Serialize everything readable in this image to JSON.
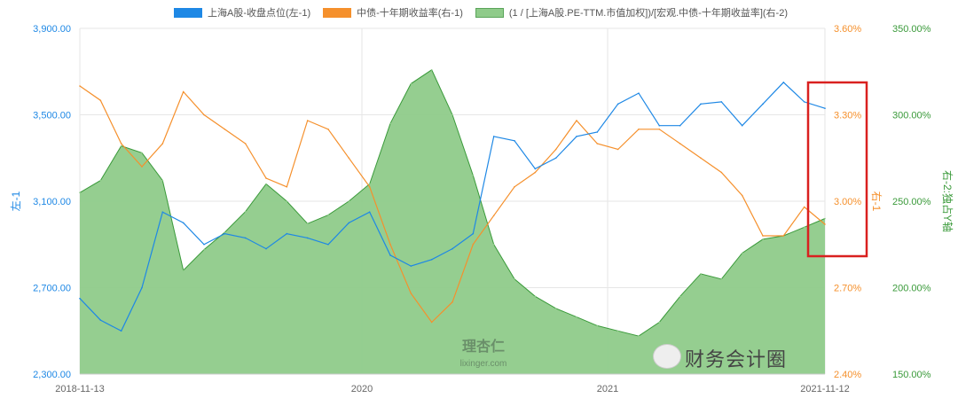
{
  "chart_data": {
    "type": "line",
    "legend_position": "top",
    "grid": true,
    "x_start": "2018-11-13",
    "x_end": "2021-11-12",
    "x_tick_labels": [
      "2018-11-13",
      "2020",
      "2021",
      "2021-11-12"
    ],
    "x": [
      "2018-11",
      "2018-12",
      "2019-01",
      "2019-02",
      "2019-03",
      "2019-04",
      "2019-05",
      "2019-06",
      "2019-07",
      "2019-08",
      "2019-09",
      "2019-10",
      "2019-11",
      "2019-12",
      "2020-01",
      "2020-02",
      "2020-03",
      "2020-04",
      "2020-05",
      "2020-06",
      "2020-07",
      "2020-08",
      "2020-09",
      "2020-10",
      "2020-11",
      "2020-12",
      "2021-01",
      "2021-02",
      "2021-03",
      "2021-04",
      "2021-05",
      "2021-06",
      "2021-07",
      "2021-08",
      "2021-09",
      "2021-10",
      "2021-11"
    ],
    "axes": {
      "left": {
        "label": "左-1",
        "range": [
          2300,
          3900
        ],
        "ticks": [
          "2,300.00",
          "2,700.00",
          "3,100.00",
          "3,500.00",
          "3,900.00"
        ],
        "color": "#1e88e5"
      },
      "right1": {
        "label": "右-1",
        "range": [
          2.4,
          3.6
        ],
        "ticks": [
          "2.40%",
          "2.70%",
          "3.00%",
          "3.30%",
          "3.60%"
        ],
        "color": "#f5902c"
      },
      "right2": {
        "label": "右-2:独占Y轴",
        "range": [
          150,
          350
        ],
        "ticks": [
          "150.00%",
          "200.00%",
          "250.00%",
          "300.00%",
          "350.00%"
        ],
        "color": "#3a9a3a"
      }
    },
    "series": [
      {
        "name": "上海A股-收盘点位(左-1)",
        "axis": "left",
        "type": "line",
        "color": "#1e88e5",
        "values": [
          2650,
          2550,
          2500,
          2700,
          3050,
          3000,
          2900,
          2950,
          2930,
          2880,
          2950,
          2930,
          2900,
          3000,
          3050,
          2850,
          2800,
          2830,
          2880,
          2950,
          3400,
          3380,
          3250,
          3300,
          3400,
          3420,
          3550,
          3600,
          3450,
          3450,
          3550,
          3560,
          3450,
          3550,
          3650,
          3560,
          3530
        ]
      },
      {
        "name": "中债-十年期收益率(右-1)",
        "axis": "right1",
        "type": "line",
        "color": "#f5902c",
        "values": [
          3.4,
          3.35,
          3.2,
          3.12,
          3.2,
          3.38,
          3.3,
          3.25,
          3.2,
          3.08,
          3.05,
          3.28,
          3.25,
          3.15,
          3.05,
          2.85,
          2.68,
          2.58,
          2.65,
          2.85,
          2.95,
          3.05,
          3.1,
          3.18,
          3.28,
          3.2,
          3.18,
          3.25,
          3.25,
          3.2,
          3.15,
          3.1,
          3.02,
          2.88,
          2.88,
          2.98,
          2.92
        ]
      },
      {
        "name": "(1 / [上海A股.PE-TTM.市值加权])/[宏观.中债-十年期收益率](右-2)",
        "axis": "right2",
        "type": "area",
        "color": "#8fcb8a",
        "values": [
          255,
          262,
          282,
          278,
          262,
          210,
          222,
          232,
          244,
          260,
          250,
          237,
          242,
          250,
          260,
          295,
          318,
          326,
          300,
          265,
          225,
          205,
          195,
          188,
          183,
          178,
          175,
          172,
          180,
          195,
          208,
          205,
          220,
          228,
          230,
          235,
          240
        ]
      }
    ]
  },
  "watermark": {
    "site": "理杏仁",
    "url": "lixinger.com",
    "account": "财务会计圈"
  },
  "highlight_color": "#d9201f"
}
